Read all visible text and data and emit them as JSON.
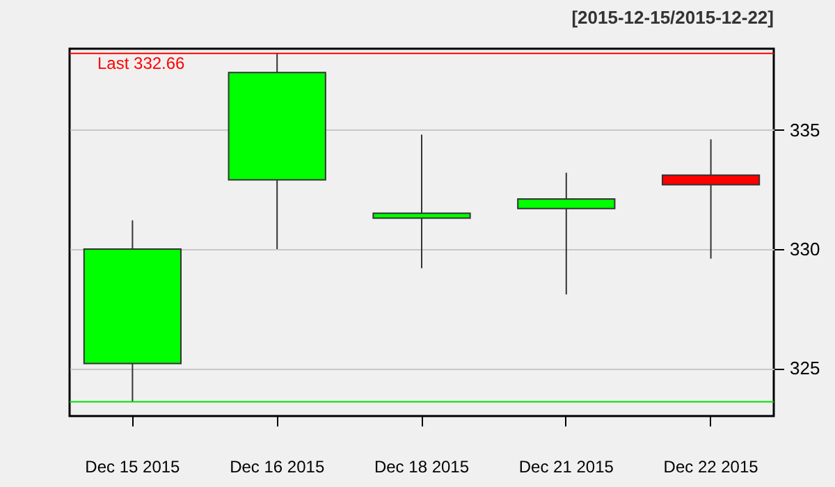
{
  "chart_data": {
    "type": "candlestick",
    "subtitle": "[2015-12-15/2015-12-22]",
    "categories": [
      "Dec 15 2015",
      "Dec 16 2015",
      "Dec 18 2015",
      "Dec 21 2015",
      "Dec 22 2015"
    ],
    "ohlc": [
      [
        325.2,
        331.2,
        323.6,
        330.0
      ],
      [
        332.9,
        338.2,
        330.0,
        337.4
      ],
      [
        331.3,
        334.8,
        329.2,
        331.5
      ],
      [
        331.7,
        333.2,
        328.1,
        332.1
      ],
      [
        333.1,
        334.6,
        329.6,
        332.7
      ]
    ],
    "colors": [
      "#00ff00",
      "#00ff00",
      "#00ff00",
      "#00ff00",
      "#ff0000"
    ],
    "ylim": [
      323.0,
      338.4
    ],
    "yticks": [
      325,
      330,
      335
    ],
    "grid": "y",
    "ref_lines": [
      {
        "axis": "y",
        "value": 338.2,
        "label": "Last 332.66",
        "color": "#ff0000"
      },
      {
        "axis": "y",
        "value": 323.6,
        "color": "#00dd00"
      }
    ]
  }
}
